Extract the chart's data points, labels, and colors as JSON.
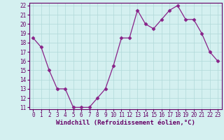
{
  "x": [
    0,
    1,
    2,
    3,
    4,
    5,
    6,
    7,
    8,
    9,
    10,
    11,
    12,
    13,
    14,
    15,
    16,
    17,
    18,
    19,
    20,
    21,
    22,
    23
  ],
  "y": [
    18.5,
    17.5,
    15.0,
    13.0,
    13.0,
    11.0,
    11.0,
    11.0,
    12.0,
    13.0,
    15.5,
    18.5,
    18.5,
    21.5,
    20.0,
    19.5,
    20.5,
    21.5,
    22.0,
    20.5,
    20.5,
    19.0,
    17.0,
    16.0
  ],
  "line_color": "#882288",
  "marker": "D",
  "marker_size": 2.5,
  "bg_color": "#d4f0f0",
  "grid_color": "#b0d8d8",
  "xlabel": "Windchill (Refroidissement éolien,°C)",
  "ylim": [
    11,
    22
  ],
  "xlim": [
    -0.5,
    23.5
  ],
  "yticks": [
    11,
    12,
    13,
    14,
    15,
    16,
    17,
    18,
    19,
    20,
    21,
    22
  ],
  "xticks": [
    0,
    1,
    2,
    3,
    4,
    5,
    6,
    7,
    8,
    9,
    10,
    11,
    12,
    13,
    14,
    15,
    16,
    17,
    18,
    19,
    20,
    21,
    22,
    23
  ],
  "tick_color": "#660066",
  "label_fontsize": 5.5,
  "xlabel_fontsize": 6.5
}
